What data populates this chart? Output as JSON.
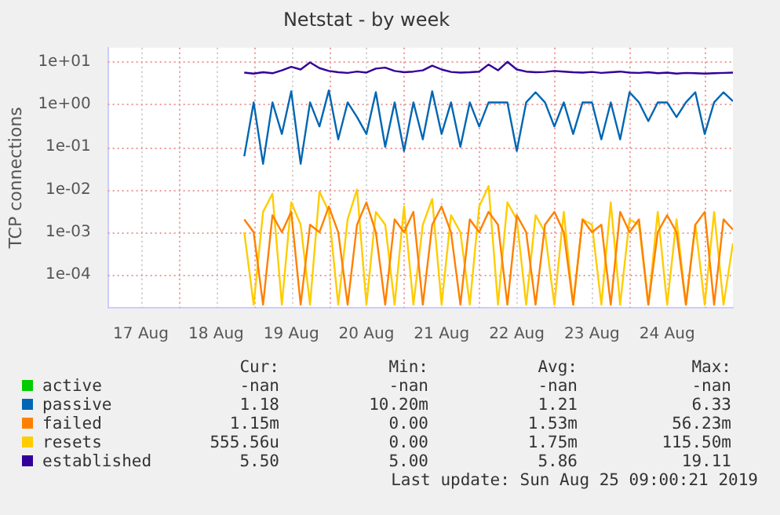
{
  "chart_data": {
    "type": "line",
    "title": "Netstat - by week",
    "ylabel": "TCP connections",
    "log": "y",
    "grid": true,
    "legend": "bottom",
    "marker": "none",
    "line_style": "solid",
    "xlim": [
      "2019-08-17T01:30",
      "2019-08-25T09:00"
    ],
    "xticks": [
      {
        "value": "2019-08-17T12:00",
        "label": "17 Aug"
      },
      {
        "value": "2019-08-18T00:00",
        "label": null
      },
      {
        "value": "2019-08-18T12:00",
        "label": "18 Aug"
      },
      {
        "value": "2019-08-19T00:00",
        "label": null
      },
      {
        "value": "2019-08-19T12:00",
        "label": "19 Aug"
      },
      {
        "value": "2019-08-20T00:00",
        "label": null
      },
      {
        "value": "2019-08-20T12:00",
        "label": "20 Aug"
      },
      {
        "value": "2019-08-21T00:00",
        "label": null
      },
      {
        "value": "2019-08-21T12:00",
        "label": "21 Aug"
      },
      {
        "value": "2019-08-22T00:00",
        "label": null
      },
      {
        "value": "2019-08-22T12:00",
        "label": "22 Aug"
      },
      {
        "value": "2019-08-23T00:00",
        "label": null
      },
      {
        "value": "2019-08-23T12:00",
        "label": "23 Aug"
      },
      {
        "value": "2019-08-24T00:00",
        "label": null
      },
      {
        "value": "2019-08-24T12:00",
        "label": "24 Aug"
      },
      {
        "value": "2019-08-25T00:00",
        "label": null
      }
    ],
    "ylim": [
      1.7e-05,
      21
    ],
    "yticks": [
      {
        "value": 0.0001,
        "label": "1e-04"
      },
      {
        "value": 0.001,
        "label": "1e-03"
      },
      {
        "value": 0.01,
        "label": "1e-02"
      },
      {
        "value": 0.1,
        "label": "1e-01"
      },
      {
        "value": 1,
        "label": "1e+00"
      },
      {
        "value": 10,
        "label": "1e+01"
      }
    ],
    "x": [
      "2019-08-18T21:00",
      "2019-08-19T00:00",
      "2019-08-19T03:00",
      "2019-08-19T06:00",
      "2019-08-19T09:00",
      "2019-08-19T12:00",
      "2019-08-19T15:00",
      "2019-08-19T18:00",
      "2019-08-19T21:00",
      "2019-08-20T00:00",
      "2019-08-20T03:00",
      "2019-08-20T06:00",
      "2019-08-20T09:00",
      "2019-08-20T12:00",
      "2019-08-20T15:00",
      "2019-08-20T18:00",
      "2019-08-20T21:00",
      "2019-08-21T00:00",
      "2019-08-21T03:00",
      "2019-08-21T06:00",
      "2019-08-21T09:00",
      "2019-08-21T12:00",
      "2019-08-21T15:00",
      "2019-08-21T18:00",
      "2019-08-21T21:00",
      "2019-08-22T00:00",
      "2019-08-22T03:00",
      "2019-08-22T06:00",
      "2019-08-22T09:00",
      "2019-08-22T12:00",
      "2019-08-22T15:00",
      "2019-08-22T18:00",
      "2019-08-22T21:00",
      "2019-08-23T00:00",
      "2019-08-23T03:00",
      "2019-08-23T06:00",
      "2019-08-23T09:00",
      "2019-08-23T12:00",
      "2019-08-23T15:00",
      "2019-08-23T18:00",
      "2019-08-23T21:00",
      "2019-08-24T00:00",
      "2019-08-24T03:00",
      "2019-08-24T06:00",
      "2019-08-24T09:00",
      "2019-08-24T12:00",
      "2019-08-24T15:00",
      "2019-08-24T18:00",
      "2019-08-24T21:00",
      "2019-08-25T00:00",
      "2019-08-25T03:00",
      "2019-08-25T06:00",
      "2019-08-25T09:00"
    ],
    "series": [
      {
        "name": "active",
        "color": "#00cc00",
        "values": [
          null,
          null,
          null,
          null,
          null,
          null,
          null,
          null,
          null,
          null,
          null,
          null,
          null,
          null,
          null,
          null,
          null,
          null,
          null,
          null,
          null,
          null,
          null,
          null,
          null,
          null,
          null,
          null,
          null,
          null,
          null,
          null,
          null,
          null,
          null,
          null,
          null,
          null,
          null,
          null,
          null,
          null,
          null,
          null,
          null,
          null,
          null,
          null,
          null,
          null,
          null,
          null,
          null
        ]
      },
      {
        "name": "passive",
        "color": "#0066b3",
        "values": [
          0.06,
          1.1,
          0.04,
          1.1,
          0.2,
          2.0,
          0.04,
          1.1,
          0.3,
          2.1,
          0.15,
          1.1,
          0.5,
          0.2,
          1.9,
          0.1,
          1.1,
          0.08,
          1.1,
          0.15,
          2.0,
          0.2,
          1.1,
          0.1,
          1.1,
          0.3,
          1.1,
          1.1,
          1.1,
          0.08,
          1.1,
          1.9,
          1.1,
          0.3,
          1.1,
          0.2,
          1.1,
          1.1,
          0.15,
          1.1,
          0.15,
          1.9,
          1.1,
          0.4,
          1.1,
          1.1,
          0.5,
          1.1,
          1.9,
          0.2,
          1.1,
          1.9,
          1.18
        ]
      },
      {
        "name": "failed",
        "color": "#ff8000",
        "values": [
          0.002,
          0.001,
          2e-05,
          0.0025,
          0.001,
          0.003,
          2e-05,
          0.0015,
          0.001,
          0.004,
          0.001,
          2e-05,
          0.0015,
          0.005,
          0.001,
          2e-05,
          0.002,
          0.001,
          0.003,
          2e-05,
          0.0015,
          0.004,
          0.001,
          2e-05,
          0.002,
          0.001,
          0.003,
          0.0015,
          2e-05,
          0.0025,
          0.001,
          2e-05,
          0.0015,
          0.003,
          0.001,
          2e-05,
          0.002,
          0.001,
          0.0015,
          2e-05,
          0.003,
          0.001,
          0.002,
          2e-05,
          0.001,
          0.0025,
          0.001,
          2e-05,
          0.0015,
          0.003,
          2e-05,
          0.002,
          0.00115
        ]
      },
      {
        "name": "resets",
        "color": "#ffcc00",
        "values": [
          0.001,
          2e-05,
          0.003,
          0.008,
          2e-05,
          0.005,
          0.0015,
          2e-05,
          0.009,
          0.003,
          2e-05,
          0.002,
          0.01,
          2e-05,
          0.003,
          0.0015,
          2e-05,
          0.004,
          2e-05,
          0.0015,
          0.006,
          2e-05,
          0.0025,
          0.001,
          2e-05,
          0.004,
          0.012,
          2e-05,
          0.005,
          0.002,
          2e-05,
          0.0025,
          0.001,
          2e-05,
          0.003,
          2e-05,
          0.002,
          0.0015,
          2e-05,
          0.005,
          2e-05,
          0.002,
          0.0015,
          2e-05,
          0.003,
          2e-05,
          0.002,
          2e-05,
          0.0015,
          2e-05,
          0.003,
          2e-05,
          0.00055
        ]
      },
      {
        "name": "established",
        "color": "#330099",
        "values": [
          5.5,
          5.2,
          5.6,
          5.3,
          6.2,
          7.5,
          6.5,
          9.5,
          7.0,
          6.0,
          5.6,
          5.4,
          5.8,
          5.5,
          6.8,
          7.2,
          6.0,
          5.6,
          5.8,
          6.2,
          8.0,
          6.5,
          5.7,
          5.5,
          5.6,
          5.8,
          8.5,
          6.2,
          9.8,
          6.5,
          5.8,
          5.6,
          5.7,
          6.0,
          5.8,
          5.6,
          5.5,
          5.7,
          5.4,
          5.6,
          5.8,
          5.5,
          5.4,
          5.6,
          5.3,
          5.5,
          5.2,
          5.4,
          5.3,
          5.2,
          5.3,
          5.4,
          5.5
        ]
      }
    ],
    "annotations": [
      "Cur:",
      "Min:",
      "Avg:",
      "Max:",
      "-nan",
      "-nan",
      "-nan",
      "-nan",
      "1.18",
      "10.20m",
      "1.21",
      "6.33",
      "1.15m",
      "0.00",
      "1.53m",
      "56.23m",
      "555.56u",
      "0.00",
      "1.75m",
      "115.50m",
      "5.50",
      "5.00",
      "5.86",
      "19.11",
      "Last update: Sun Aug 25 09:00:21 2019"
    ]
  }
}
